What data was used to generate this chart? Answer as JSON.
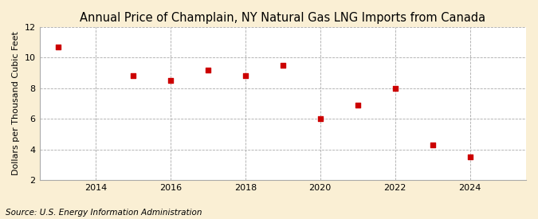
{
  "title": "Annual Price of Champlain, NY Natural Gas LNG Imports from Canada",
  "ylabel": "Dollars per Thousand Cubic Feet",
  "source": "Source: U.S. Energy Information Administration",
  "years": [
    2013,
    2015,
    2016,
    2017,
    2018,
    2019,
    2020,
    2021,
    2022,
    2023,
    2024
  ],
  "values": [
    10.7,
    8.8,
    8.5,
    9.2,
    8.8,
    9.5,
    6.0,
    6.9,
    8.0,
    4.3,
    3.5
  ],
  "xlim": [
    2012.5,
    2025.5
  ],
  "ylim": [
    2,
    12
  ],
  "yticks": [
    2,
    4,
    6,
    8,
    10,
    12
  ],
  "xticks": [
    2014,
    2016,
    2018,
    2020,
    2022,
    2024
  ],
  "marker_color": "#cc0000",
  "marker": "s",
  "marker_size": 4,
  "plot_bg_color": "#ffffff",
  "fig_bg_color": "#faefd4",
  "grid_color": "#aaaaaa",
  "title_fontsize": 10.5,
  "title_fontweight": "normal",
  "label_fontsize": 8,
  "tick_fontsize": 8,
  "source_fontsize": 7.5
}
